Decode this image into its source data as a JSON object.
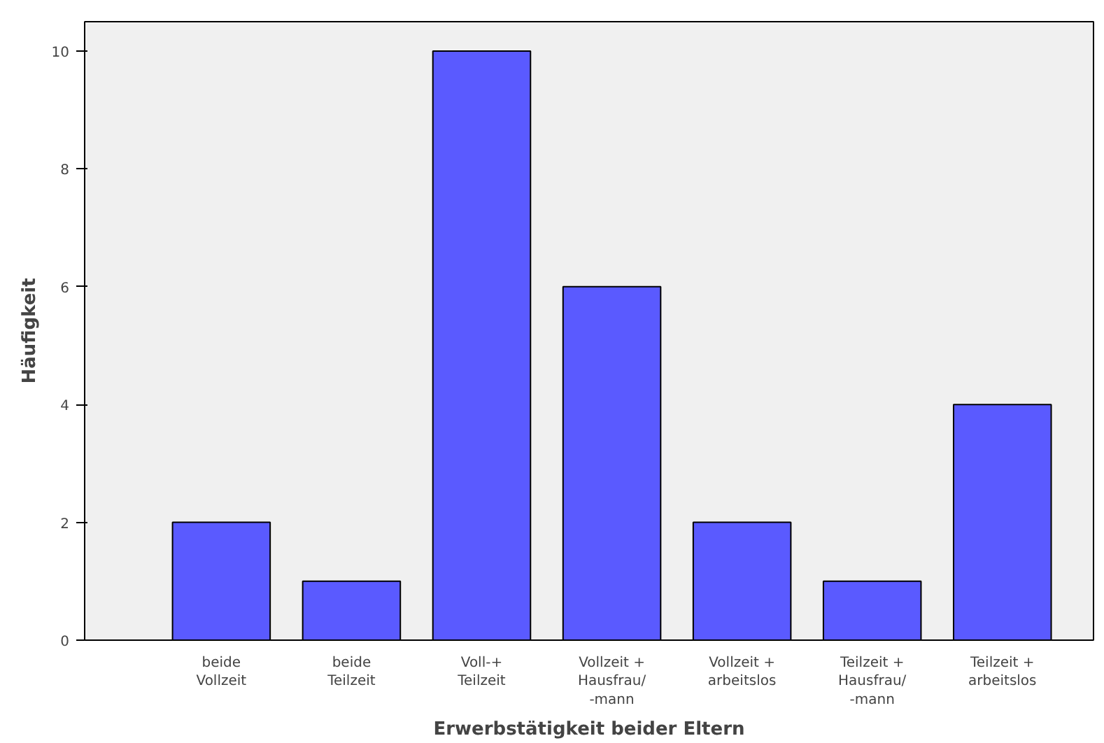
{
  "chart_data": {
    "type": "bar",
    "xlabel": "Erwerbstätigkeit beider Eltern",
    "ylabel": "Häufigkeit",
    "categories": [
      "beide\nVollzeit",
      "beide\nTeilzeit",
      "Voll-+\nTeilzeit",
      "Vollzeit +\nHausfrau/\n-mann",
      "Vollzeit +\narbeitslos",
      "Teilzeit +\nHausfrau/\n-mann",
      "Teilzeit +\narbeitslos"
    ],
    "values": [
      2,
      1,
      10,
      6,
      2,
      1,
      4
    ],
    "color": "#5a5aff",
    "ylim": [
      0,
      10.5
    ],
    "yticks": [
      0,
      2,
      4,
      6,
      8,
      10
    ],
    "grid": false
  }
}
